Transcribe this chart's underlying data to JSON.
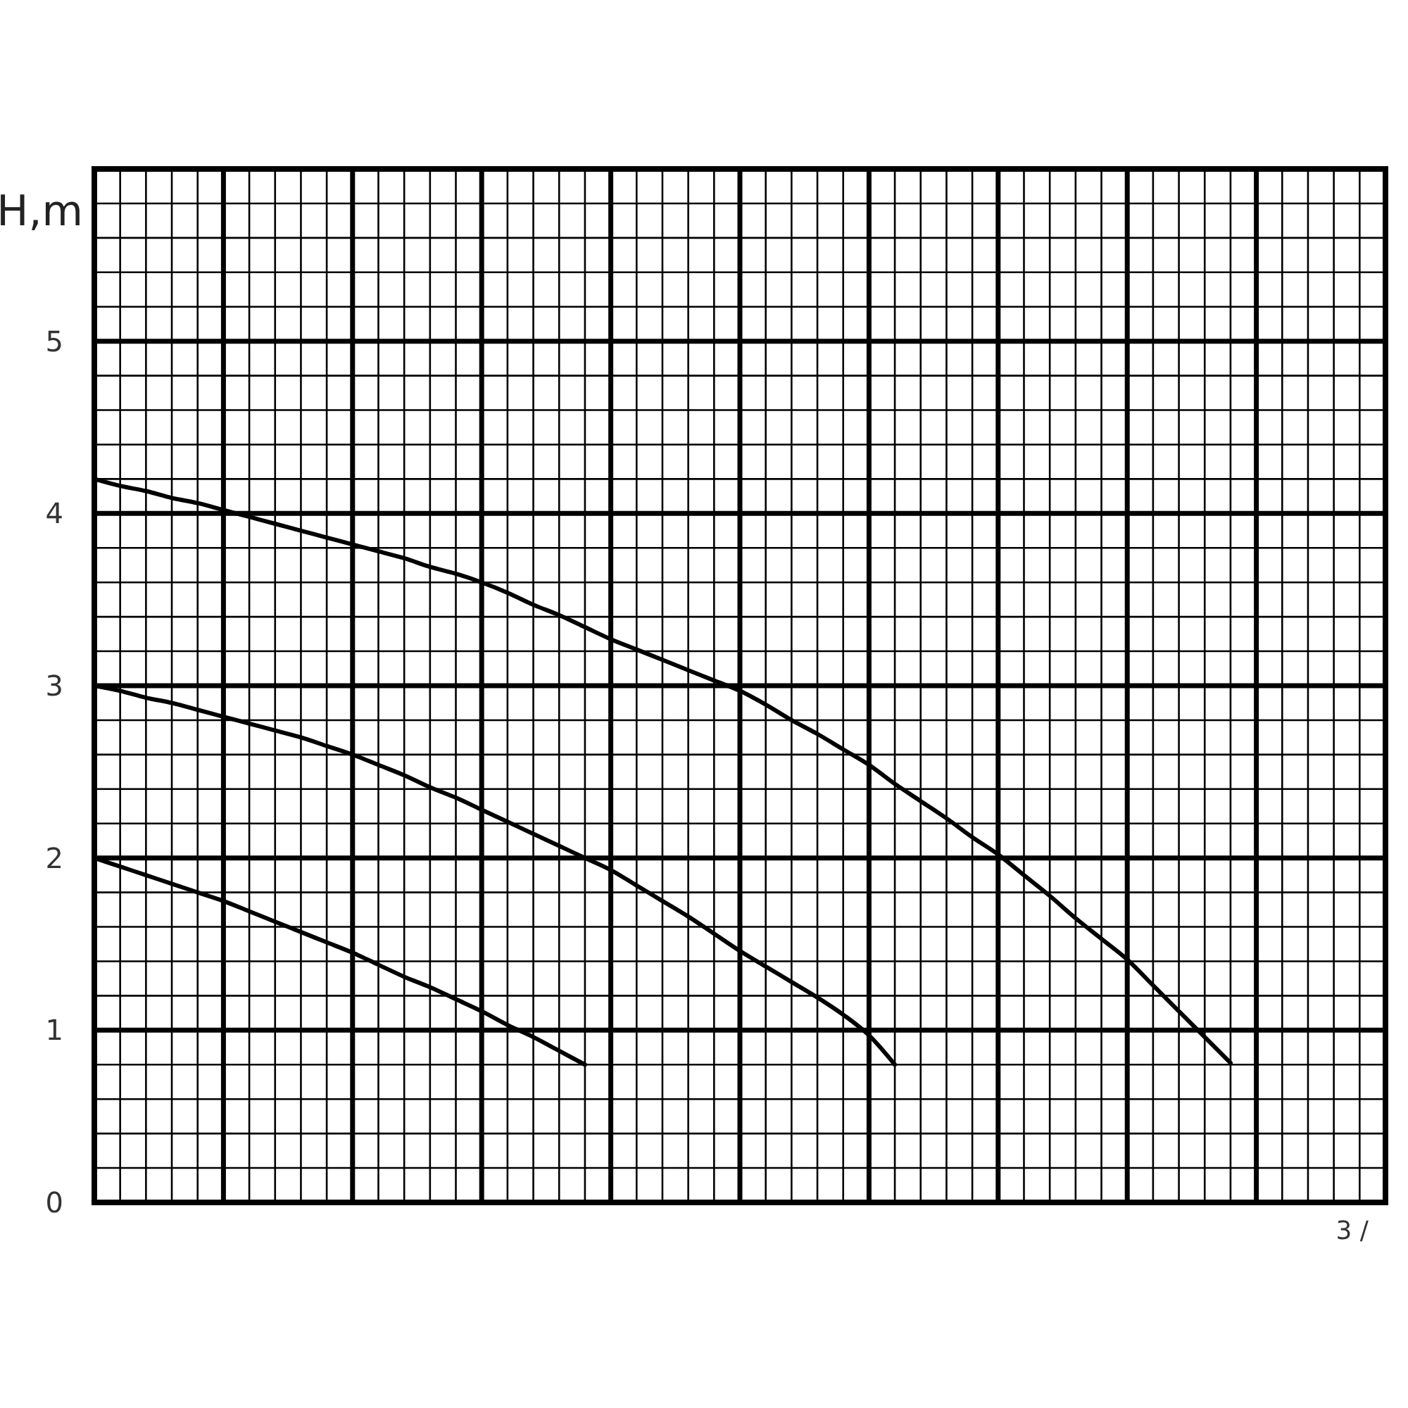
{
  "chart_data": {
    "type": "line",
    "ylabel": "H,m",
    "xlabel": "3 /",
    "categories": [
      null,
      null,
      null,
      null,
      null,
      null,
      null,
      null,
      null,
      null,
      null,
      null,
      null,
      null,
      null,
      null,
      null,
      null,
      null,
      null,
      null,
      null,
      null,
      null,
      null,
      null,
      null,
      null,
      null,
      null,
      null,
      null,
      null,
      null,
      null,
      null,
      null,
      null,
      null,
      null,
      null,
      null,
      null,
      null,
      null,
      null,
      null,
      null,
      null,
      null,
      null
    ],
    "series": [
      {
        "color": "#000000",
        "values": [
          4.2,
          4.16,
          4.13,
          4.09,
          4.06,
          4.02,
          3.98,
          3.94,
          3.9,
          3.86,
          3.82,
          3.78,
          3.74,
          3.69,
          3.65,
          3.6,
          3.54,
          3.47,
          3.41,
          3.34,
          3.27,
          3.21,
          3.15,
          3.09,
          3.03,
          2.97,
          2.89,
          2.8,
          2.72,
          2.63,
          2.54,
          2.43,
          2.33,
          2.23,
          2.12,
          2.02,
          1.9,
          1.78,
          1.65,
          1.53,
          1.41,
          1.26,
          1.11,
          0.96,
          0.81,
          null,
          null,
          null,
          null,
          null,
          null
        ]
      },
      {
        "color": "#000000",
        "values": [
          3.0,
          2.97,
          2.93,
          2.9,
          2.86,
          2.82,
          2.78,
          2.74,
          2.7,
          2.65,
          2.6,
          2.54,
          2.48,
          2.41,
          2.35,
          2.28,
          2.21,
          2.14,
          2.07,
          2.0,
          1.93,
          1.84,
          1.75,
          1.66,
          1.56,
          1.46,
          1.37,
          1.28,
          1.19,
          1.09,
          0.97,
          0.8,
          null,
          null,
          null,
          null,
          null,
          null,
          null,
          null,
          null,
          null,
          null,
          null,
          null,
          null,
          null,
          null,
          null,
          null,
          null
        ]
      },
      {
        "color": "#000000",
        "values": [
          2.0,
          1.95,
          1.9,
          1.85,
          1.8,
          1.75,
          1.69,
          1.63,
          1.57,
          1.51,
          1.45,
          1.38,
          1.31,
          1.25,
          1.18,
          1.11,
          1.03,
          0.96,
          0.88,
          0.8,
          null,
          null,
          null,
          null,
          null,
          null,
          null,
          null,
          null,
          null,
          null,
          null,
          null,
          null,
          null,
          null,
          null,
          null,
          null,
          null,
          null,
          null,
          null,
          null,
          null,
          null,
          null,
          null,
          null,
          null,
          null
        ]
      }
    ],
    "ylim": [
      0,
      6
    ],
    "yticks": [
      0,
      {
        "value": 0.2,
        "label": null
      },
      {
        "value": 0.4,
        "label": null
      },
      {
        "value": 0.6,
        "label": null
      },
      {
        "value": 0.8,
        "label": null
      },
      1,
      {
        "value": 1.2,
        "label": null
      },
      {
        "value": 1.4,
        "label": null
      },
      {
        "value": 1.6,
        "label": null
      },
      {
        "value": 1.8,
        "label": null
      },
      2,
      {
        "value": 2.2,
        "label": null
      },
      {
        "value": 2.4,
        "label": null
      },
      {
        "value": 2.6,
        "label": null
      },
      {
        "value": 2.8,
        "label": null
      },
      3,
      {
        "value": 3.2,
        "label": null
      },
      {
        "value": 3.4,
        "label": null
      },
      {
        "value": 3.6,
        "label": null
      },
      {
        "value": 3.8,
        "label": null
      },
      4,
      {
        "value": 4.2,
        "label": null
      },
      {
        "value": 4.4,
        "label": null
      },
      {
        "value": 4.6,
        "label": null
      },
      {
        "value": 4.8,
        "label": null
      },
      5,
      {
        "value": 5.2,
        "label": null
      },
      {
        "value": 5.4,
        "label": null
      },
      {
        "value": 5.6,
        "label": null
      },
      {
        "value": 5.8,
        "label": null
      },
      {
        "value": 6,
        "label": null
      }
    ],
    "grid": true,
    "marker": "none",
    "line_style": "solid",
    "tick_labels": "y"
  }
}
